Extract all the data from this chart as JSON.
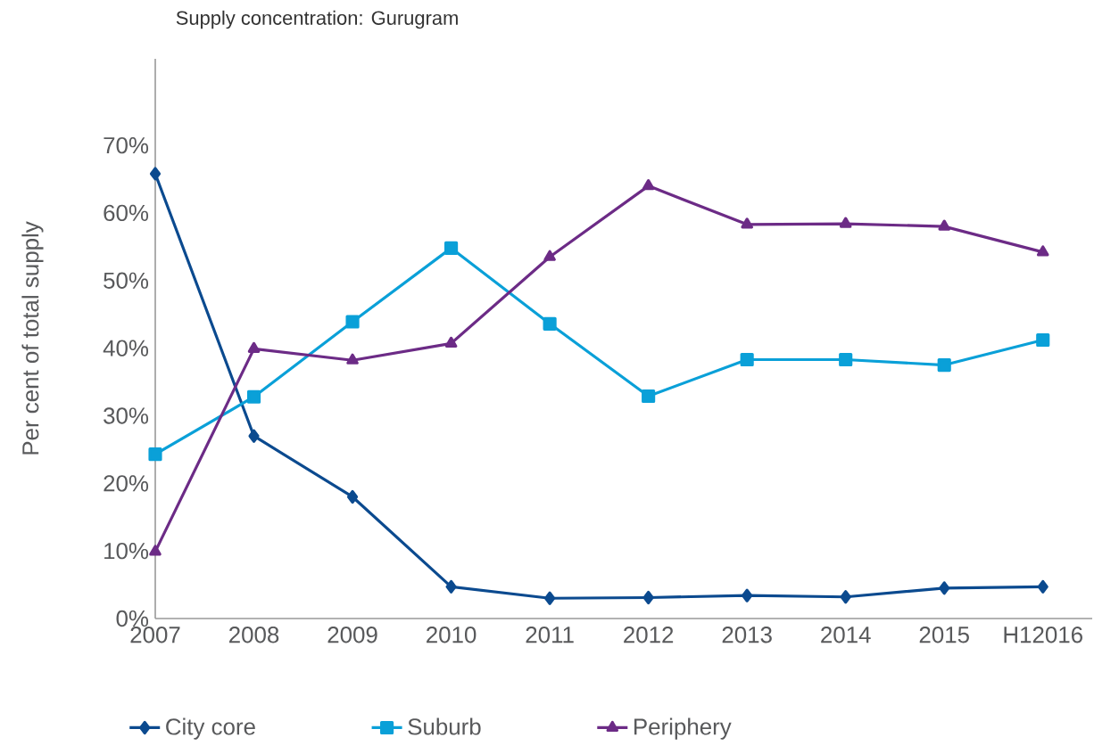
{
  "chart_data": {
    "type": "line",
    "title": "Supply concentration: Gurugram",
    "ylabel": "Per cent of total supply",
    "categories": [
      "2007",
      "2008",
      "2009",
      "2010",
      "2011",
      "2012",
      "2013",
      "2014",
      "2015",
      "H12016"
    ],
    "series": [
      {
        "name": "City core",
        "color": "#0b4a8f",
        "marker": "diamond",
        "values": [
          65.8,
          27,
          18,
          4.7,
          3,
          3.1,
          3.4,
          3.2,
          4.5,
          4.7
        ]
      },
      {
        "name": "Suburb",
        "color": "#0aa0d8",
        "marker": "square",
        "values": [
          24.3,
          32.8,
          43.9,
          54.8,
          43.6,
          32.9,
          38.3,
          38.3,
          37.5,
          41.2
        ]
      },
      {
        "name": "Periphery",
        "color": "#6c2b86",
        "marker": "triangle",
        "values": [
          9.9,
          39.9,
          38.2,
          40.7,
          53.5,
          64,
          58.3,
          58.4,
          58,
          54.2
        ]
      }
    ],
    "ylim": [
      0,
      82.8
    ],
    "yticks": [
      {
        "value": 0,
        "label": "0%"
      },
      {
        "value": 10,
        "label": "10%"
      },
      {
        "value": 20,
        "label": "20%"
      },
      {
        "value": 30,
        "label": "30%"
      },
      {
        "value": 40,
        "label": "40%"
      },
      {
        "value": 50,
        "label": "50%"
      },
      {
        "value": 60,
        "label": "60%"
      },
      {
        "value": 70,
        "label": "70%"
      }
    ],
    "grid": false,
    "legend": "bottom",
    "line_style": "solid"
  }
}
